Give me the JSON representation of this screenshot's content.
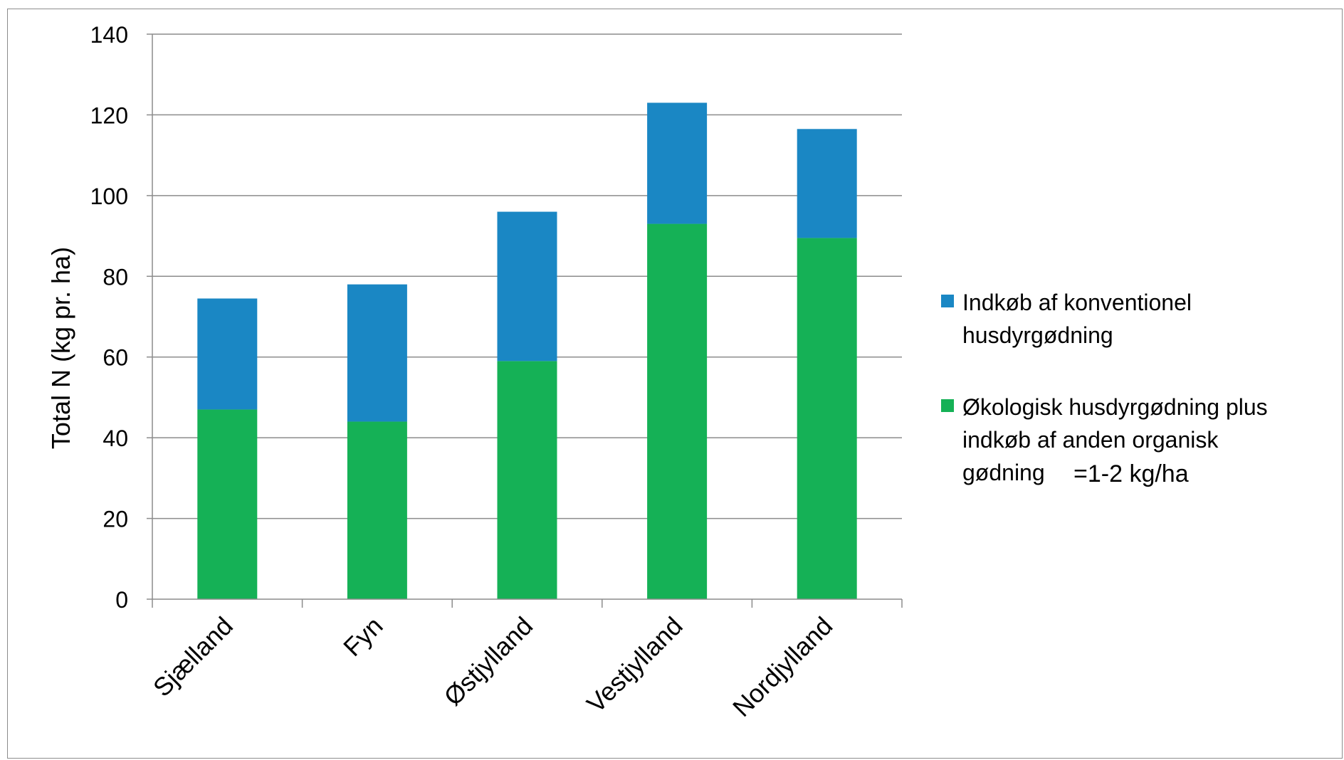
{
  "chart_data": {
    "type": "bar",
    "stacked": true,
    "categories": [
      "Sjælland",
      "Fyn",
      "Østjylland",
      "Vestjylland",
      "Nordjylland"
    ],
    "series": [
      {
        "name": "Økologisk husdyrgødning plus indkøb af anden organisk gødning",
        "legend_lines": [
          "Økologisk husdyrgødning plus",
          "indkøb af anden organisk",
          "gødning"
        ],
        "color": "#15b156",
        "values": [
          47,
          44,
          59,
          93,
          89.5
        ]
      },
      {
        "name": "Indkøb af konventionel husdyrgødning",
        "legend_lines": [
          "Indkøb af konventionel",
          "husdyrgødning"
        ],
        "color": "#1a87c4",
        "values": [
          27.5,
          34,
          37,
          30,
          27
        ]
      }
    ],
    "ylabel": "Total N (kg pr. ha)",
    "xlabel": "",
    "title": "",
    "ylim": [
      0,
      140
    ],
    "yticks": [
      "0",
      "20",
      "40",
      "60",
      "80",
      "100",
      "120",
      "140"
    ],
    "grid": true,
    "legend_position": "right",
    "annotation": "=1-2 kg/ha"
  }
}
